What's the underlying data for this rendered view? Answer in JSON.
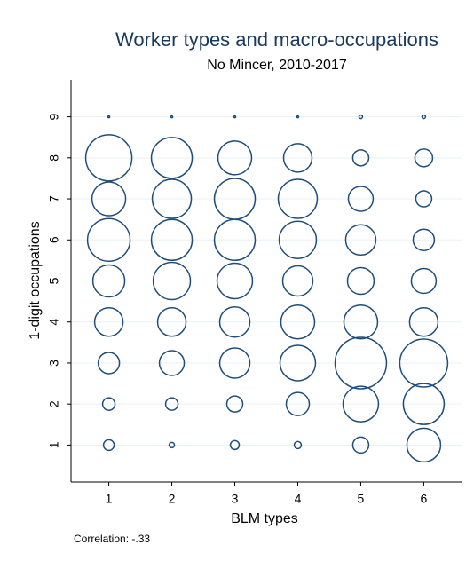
{
  "chart_data": {
    "type": "bubble",
    "title": "Worker types and macro-occupations",
    "subtitle": "No Mincer, 2010-2017",
    "x_label": "BLM types",
    "y_label": "1-digit occupations",
    "note": "Correlation: -.33",
    "color": "#1f4e79",
    "grid": true,
    "xlim": [
      0.4,
      6.6
    ],
    "ylim": [
      0.1,
      9.9
    ],
    "xticks": [
      1,
      2,
      3,
      4,
      5,
      6
    ],
    "yticks": [
      1,
      2,
      3,
      4,
      5,
      6,
      7,
      8,
      9
    ],
    "x": [
      1,
      1,
      1,
      1,
      1,
      1,
      1,
      1,
      1,
      2,
      2,
      2,
      2,
      2,
      2,
      2,
      2,
      2,
      3,
      3,
      3,
      3,
      3,
      3,
      3,
      3,
      3,
      4,
      4,
      4,
      4,
      4,
      4,
      4,
      4,
      4,
      5,
      5,
      5,
      5,
      5,
      5,
      5,
      5,
      5,
      6,
      6,
      6,
      6,
      6,
      6,
      6,
      6,
      6
    ],
    "y": [
      1,
      2,
      3,
      4,
      5,
      6,
      7,
      8,
      9,
      1,
      2,
      3,
      4,
      5,
      6,
      7,
      8,
      9,
      1,
      2,
      3,
      4,
      5,
      6,
      7,
      8,
      9,
      1,
      2,
      3,
      4,
      5,
      6,
      7,
      8,
      9,
      1,
      2,
      3,
      4,
      5,
      6,
      7,
      8,
      9,
      1,
      2,
      3,
      4,
      5,
      6,
      7,
      8,
      9
    ],
    "sizes": [
      36,
      49,
      144,
      256,
      324,
      576,
      361,
      676,
      1,
      9,
      49,
      196,
      256,
      441,
      529,
      484,
      529,
      1,
      25,
      81,
      289,
      289,
      400,
      529,
      529,
      361,
      1,
      16,
      169,
      400,
      361,
      289,
      441,
      484,
      256,
      1,
      81,
      400,
      841,
      361,
      225,
      289,
      196,
      81,
      4,
      361,
      529,
      729,
      256,
      196,
      144,
      81,
      100,
      4
    ]
  }
}
